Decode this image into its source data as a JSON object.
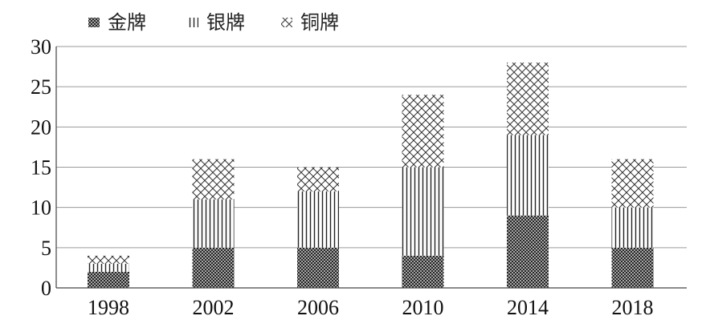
{
  "chart_data": {
    "type": "bar",
    "stacked": true,
    "categories": [
      "1998",
      "2002",
      "2006",
      "2010",
      "2014",
      "2018"
    ],
    "series": [
      {
        "name": "金牌",
        "values": [
          2,
          5,
          5,
          4,
          9,
          5
        ],
        "pattern": "crosshatch-dense"
      },
      {
        "name": "银牌",
        "values": [
          1,
          6,
          7,
          11,
          10,
          5
        ],
        "pattern": "vertical-lines"
      },
      {
        "name": "铜牌",
        "values": [
          1,
          5,
          3,
          9,
          9,
          6
        ],
        "pattern": "crosshatch-open"
      }
    ],
    "ylim": [
      0,
      30
    ],
    "yticks": [
      "0",
      "5",
      "10",
      "15",
      "20",
      "25",
      "30"
    ],
    "grid": true,
    "legend_position": "top-left",
    "colors": {
      "ink": "#222222",
      "grid": "#9a9a9a",
      "axis": "#444444"
    }
  }
}
